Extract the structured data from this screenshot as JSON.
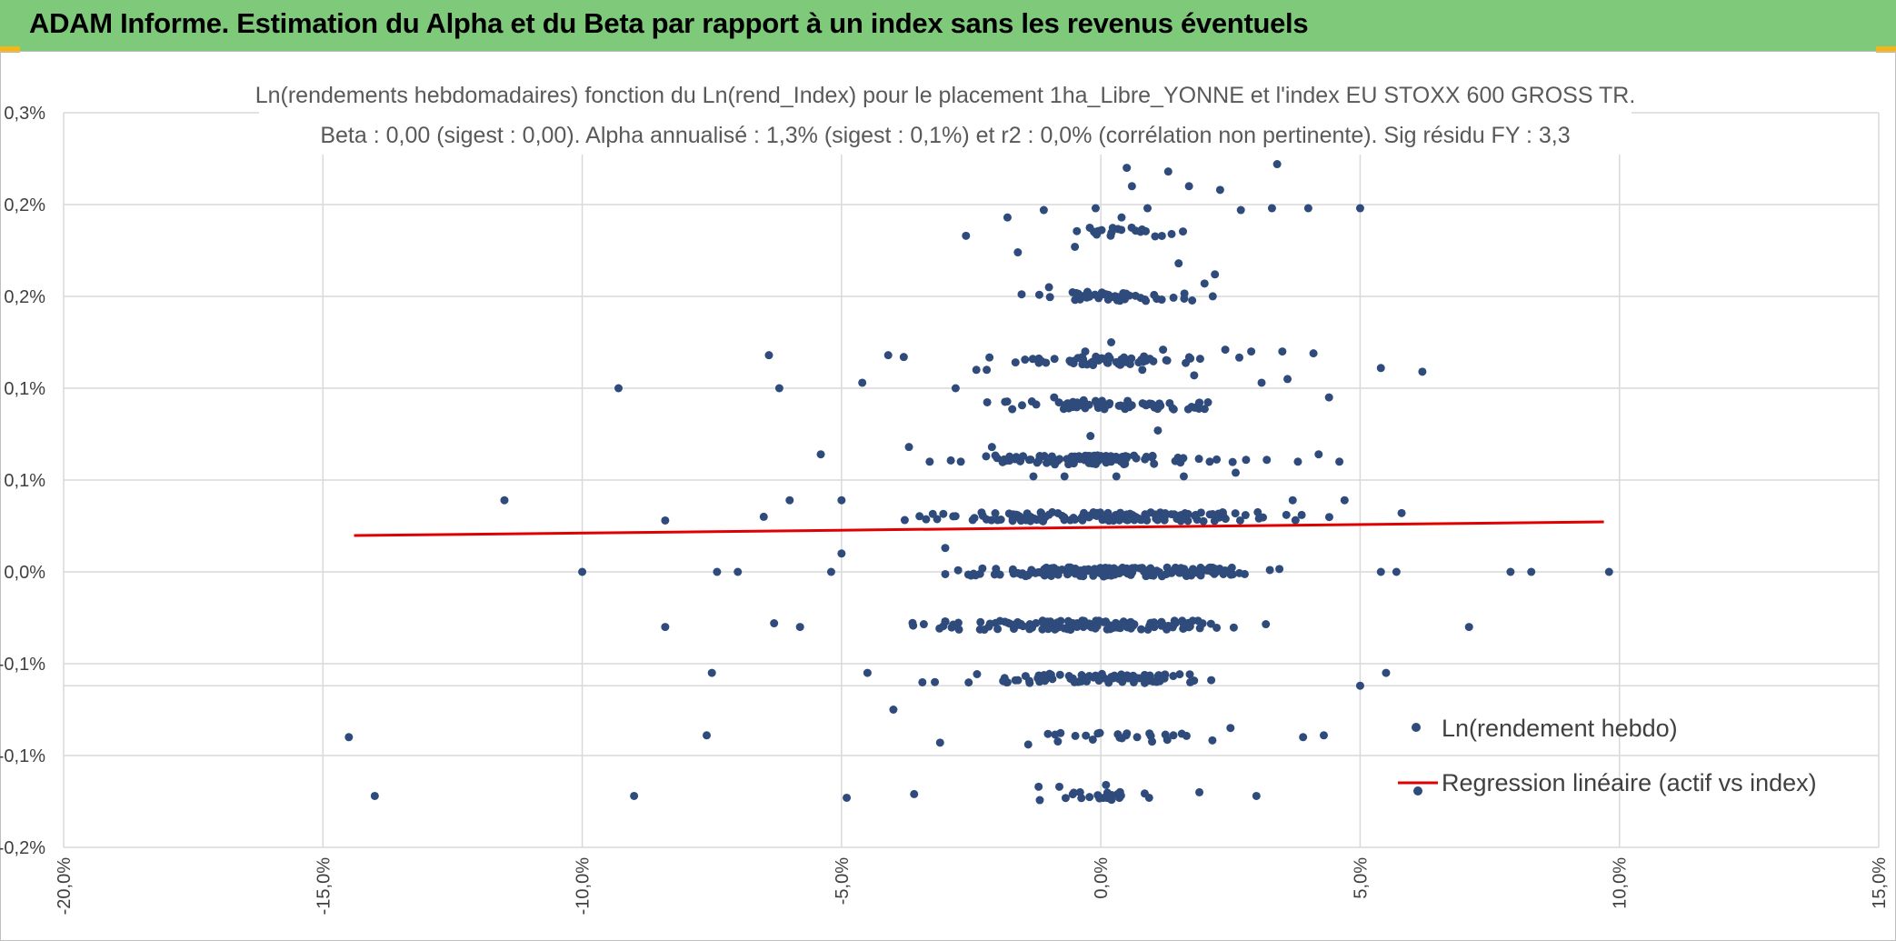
{
  "banner": {
    "title": "ADAM Informe. Estimation du Alpha et du Beta par rapport à un index sans les revenus éventuels",
    "color": "#7ec97a"
  },
  "chart_data": {
    "type": "scatter",
    "title": "Ln(rendements hebdomadaires) fonction du Ln(rend_Index) pour le placement 1ha_Libre_YONNE et l'index EU STOXX 600 GROSS TR.",
    "subtitle": "Beta : 0,00 (sigest : 0,00). Alpha annualisé : 1,3% (sigest : 0,1%) et r2 : 0,0% (corrélation non pertinente). Sig résidu FY : 3,3",
    "xlabel": "",
    "ylabel": "",
    "xlim": [
      -0.2,
      0.15
    ],
    "ylim": [
      -0.0015,
      0.0025
    ],
    "x_ticks": [
      -0.2,
      -0.15,
      -0.1,
      -0.05,
      0.0,
      0.05,
      0.1,
      0.15
    ],
    "x_tick_labels": [
      "-20,0%",
      "-15,0%",
      "-10,0%",
      "-5,0%",
      "0,0%",
      "5,0%",
      "10,0%",
      "15,0%"
    ],
    "y_ticks": [
      0.0025,
      0.002,
      0.0015,
      0.001,
      0.0005,
      0.0,
      -0.0005,
      -0.001,
      -0.0015
    ],
    "y_tick_labels": [
      "0,3%",
      "0,2%",
      "0,2%",
      "0,1%",
      "0,1%",
      "0,0%",
      "-0,1%",
      "-0,1%",
      "-0,2%"
    ],
    "grid": true,
    "legend_position": "bottom-right",
    "series": [
      {
        "name": "Ln(rendement hebdo)",
        "kind": "points",
        "color": "#2f4b7c",
        "points": [
          [
            -0.145,
            -0.0009
          ],
          [
            -0.14,
            -0.00122
          ],
          [
            -0.115,
            0.00039
          ],
          [
            -0.1,
            0.0
          ],
          [
            -0.093,
            0.001
          ],
          [
            -0.084,
            0.00028
          ],
          [
            -0.084,
            -0.0003
          ],
          [
            -0.075,
            -0.00055
          ],
          [
            -0.074,
            0.0
          ],
          [
            -0.076,
            -0.00089
          ],
          [
            -0.07,
            0.0
          ],
          [
            -0.065,
            0.0003
          ],
          [
            -0.064,
            0.00118
          ],
          [
            -0.062,
            0.001
          ],
          [
            -0.06,
            0.00039
          ],
          [
            -0.063,
            -0.00028
          ],
          [
            -0.058,
            -0.0003
          ],
          [
            -0.054,
            0.00064
          ],
          [
            -0.052,
            0.0
          ],
          [
            -0.05,
            0.00039
          ],
          [
            -0.049,
            -0.00123
          ],
          [
            -0.046,
            0.00103
          ],
          [
            -0.045,
            -0.00055
          ],
          [
            -0.041,
            0.00118
          ],
          [
            -0.04,
            -0.00075
          ],
          [
            -0.038,
            0.00117
          ],
          [
            -0.037,
            0.00068
          ],
          [
            -0.036,
            -0.00121
          ],
          [
            -0.033,
            0.0006
          ],
          [
            -0.032,
            -0.0006
          ],
          [
            -0.031,
            -0.00093
          ],
          [
            -0.03,
            0.00013
          ],
          [
            -0.028,
            0.001
          ],
          [
            -0.027,
            0.0006
          ],
          [
            -0.026,
            0.00183
          ],
          [
            -0.024,
            0.0011
          ],
          [
            -0.022,
            0.0011
          ],
          [
            -0.021,
            0.00068
          ],
          [
            -0.02,
            0.00062
          ],
          [
            -0.018,
            0.00193
          ],
          [
            -0.016,
            0.00174
          ],
          [
            -0.015,
            0.00063
          ],
          [
            -0.014,
            -0.00094
          ],
          [
            -0.013,
            0.00052
          ],
          [
            -0.012,
            -0.00117
          ],
          [
            -0.011,
            0.00197
          ],
          [
            -0.01,
            0.00155
          ],
          [
            -0.009,
            0.00095
          ],
          [
            -0.008,
            -0.00117
          ],
          [
            -0.007,
            0.00052
          ],
          [
            -0.006,
            0.00115
          ],
          [
            -0.005,
            0.00177
          ],
          [
            -0.004,
            -0.0012
          ],
          [
            -0.003,
            0.0012
          ],
          [
            -0.002,
            0.00074
          ],
          [
            -0.001,
            0.00198
          ],
          [
            0.0,
            0.00062
          ],
          [
            0.001,
            -0.00116
          ],
          [
            0.002,
            0.00125
          ],
          [
            0.003,
            0.00052
          ],
          [
            0.004,
            0.00193
          ],
          [
            0.005,
            0.0022
          ],
          [
            0.006,
            0.0021
          ],
          [
            0.007,
            -0.0009
          ],
          [
            0.008,
            0.0011
          ],
          [
            0.009,
            0.00198
          ],
          [
            0.01,
            0.00063
          ],
          [
            0.011,
            0.00077
          ],
          [
            0.012,
            0.00121
          ],
          [
            0.013,
            0.00218
          ],
          [
            0.014,
            -0.00089
          ],
          [
            0.015,
            0.00168
          ],
          [
            0.016,
            0.00052
          ],
          [
            0.017,
            0.0021
          ],
          [
            0.018,
            0.00107
          ],
          [
            0.019,
            -0.0012
          ],
          [
            0.02,
            0.00157
          ],
          [
            0.021,
            0.0006
          ],
          [
            0.022,
            0.00162
          ],
          [
            0.023,
            0.00208
          ],
          [
            0.024,
            0.00121
          ],
          [
            0.025,
            -0.00085
          ],
          [
            0.026,
            0.00054
          ],
          [
            0.027,
            0.00197
          ],
          [
            0.028,
            0.00061
          ],
          [
            0.029,
            0.0012
          ],
          [
            0.03,
            -0.00122
          ],
          [
            0.031,
            0.00103
          ],
          [
            0.032,
            0.00061
          ],
          [
            0.033,
            0.00198
          ],
          [
            0.034,
            0.00222
          ],
          [
            0.035,
            0.0012
          ],
          [
            0.036,
            0.00105
          ],
          [
            0.037,
            0.00039
          ],
          [
            0.038,
            0.0006
          ],
          [
            0.039,
            -0.0009
          ],
          [
            0.04,
            0.00198
          ],
          [
            0.041,
            0.00119
          ],
          [
            0.042,
            0.00064
          ],
          [
            0.043,
            -0.00089
          ],
          [
            0.044,
            0.00095
          ],
          [
            0.046,
            0.0006
          ],
          [
            0.047,
            0.00039
          ],
          [
            0.05,
            0.00198
          ],
          [
            0.05,
            -0.00062
          ],
          [
            0.054,
            0.00111
          ],
          [
            0.054,
            0.0
          ],
          [
            0.055,
            -0.00055
          ],
          [
            0.057,
            0.0
          ],
          [
            0.058,
            0.00032
          ],
          [
            0.062,
            0.00109
          ],
          [
            0.071,
            -0.0003
          ],
          [
            0.079,
            0.0
          ],
          [
            0.083,
            0.0
          ],
          [
            0.098,
            0.0
          ],
          [
            -0.09,
            -0.00122
          ],
          [
            -0.05,
            0.0001
          ]
        ],
        "bands": [
          {
            "y": 0.0,
            "x_min": -0.035,
            "x_max": 0.045,
            "count": 160
          },
          {
            "y": 0.0003,
            "x_min": -0.045,
            "x_max": 0.047,
            "count": 150
          },
          {
            "y": -0.00029,
            "x_min": -0.045,
            "x_max": 0.04,
            "count": 140
          },
          {
            "y": 0.00061,
            "x_min": -0.035,
            "x_max": 0.03,
            "count": 85
          },
          {
            "y": -0.00058,
            "x_min": -0.038,
            "x_max": 0.038,
            "count": 80
          },
          {
            "y": 0.00091,
            "x_min": -0.028,
            "x_max": 0.033,
            "count": 70
          },
          {
            "y": 0.00115,
            "x_min": -0.025,
            "x_max": 0.028,
            "count": 55
          },
          {
            "y": 0.0015,
            "x_min": -0.02,
            "x_max": 0.025,
            "count": 45
          },
          {
            "y": -0.0009,
            "x_min": -0.02,
            "x_max": 0.03,
            "count": 22
          },
          {
            "y": 0.00185,
            "x_min": -0.01,
            "x_max": 0.02,
            "count": 22
          },
          {
            "y": -0.00122,
            "x_min": -0.015,
            "x_max": 0.015,
            "count": 22
          }
        ]
      },
      {
        "name": "Regression linéaire (actif vs index)",
        "kind": "line",
        "color": "#e00000",
        "x": [
          -0.144,
          0.097
        ],
        "y": [
          0.000198,
          0.000272
        ]
      }
    ]
  }
}
